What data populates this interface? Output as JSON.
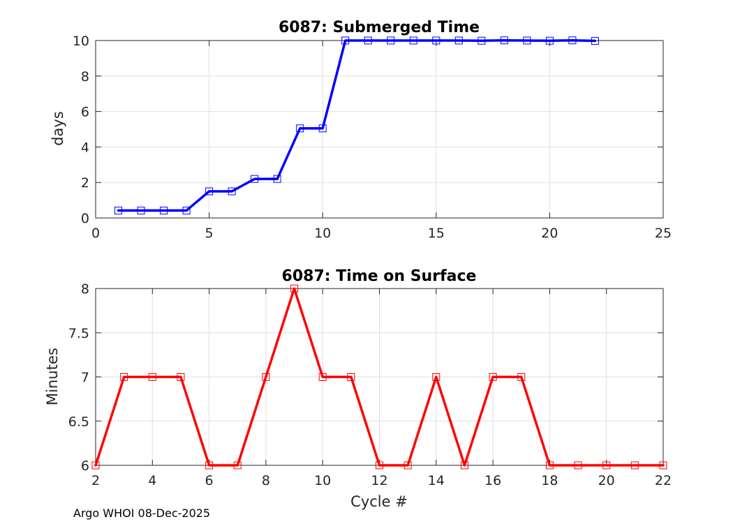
{
  "footer": {
    "text": "Argo WHOI 08-Dec-2025"
  },
  "chart_data": [
    {
      "type": "line",
      "title": "6087: Submerged Time",
      "xlabel": "",
      "ylabel": "days",
      "xlim": [
        0,
        25
      ],
      "ylim": [
        0,
        10
      ],
      "xticks": [
        0,
        5,
        10,
        15,
        20,
        25
      ],
      "yticks": [
        0,
        2,
        4,
        6,
        8,
        10
      ],
      "grid": true,
      "series": [
        {
          "name": "Submerged Time",
          "color": "#0000ff",
          "marker": "square",
          "x": [
            1,
            2,
            3,
            4,
            5,
            6,
            7,
            8,
            9,
            10,
            11,
            12,
            13,
            14,
            15,
            16,
            17,
            18,
            19,
            20,
            21,
            22
          ],
          "y": [
            0.42,
            0.42,
            0.42,
            0.42,
            1.5,
            1.5,
            2.2,
            2.2,
            5.05,
            5.05,
            10.0,
            10.0,
            10.0,
            10.0,
            10.0,
            10.0,
            9.99,
            10.01,
            10.0,
            9.99,
            10.01,
            9.98
          ]
        }
      ]
    },
    {
      "type": "line",
      "title": "6087: Time on Surface",
      "xlabel": "Cycle #",
      "ylabel": "Minutes",
      "xlim": [
        2,
        22
      ],
      "ylim": [
        6,
        8
      ],
      "xticks": [
        2,
        4,
        6,
        8,
        10,
        12,
        14,
        16,
        18,
        20,
        22
      ],
      "yticks": [
        6,
        6.5,
        7,
        7.5,
        8
      ],
      "grid": true,
      "series": [
        {
          "name": "Time on Surface",
          "color": "#ff0000",
          "marker": "square",
          "x": [
            2,
            3,
            4,
            5,
            6,
            7,
            8,
            9,
            10,
            11,
            12,
            13,
            14,
            15,
            16,
            17,
            18,
            19,
            20,
            21,
            22
          ],
          "y": [
            6,
            7,
            7,
            7,
            6,
            6,
            7,
            8,
            7,
            7,
            6,
            6,
            7,
            6,
            7,
            7,
            6,
            6,
            6,
            6,
            6
          ]
        }
      ]
    }
  ]
}
